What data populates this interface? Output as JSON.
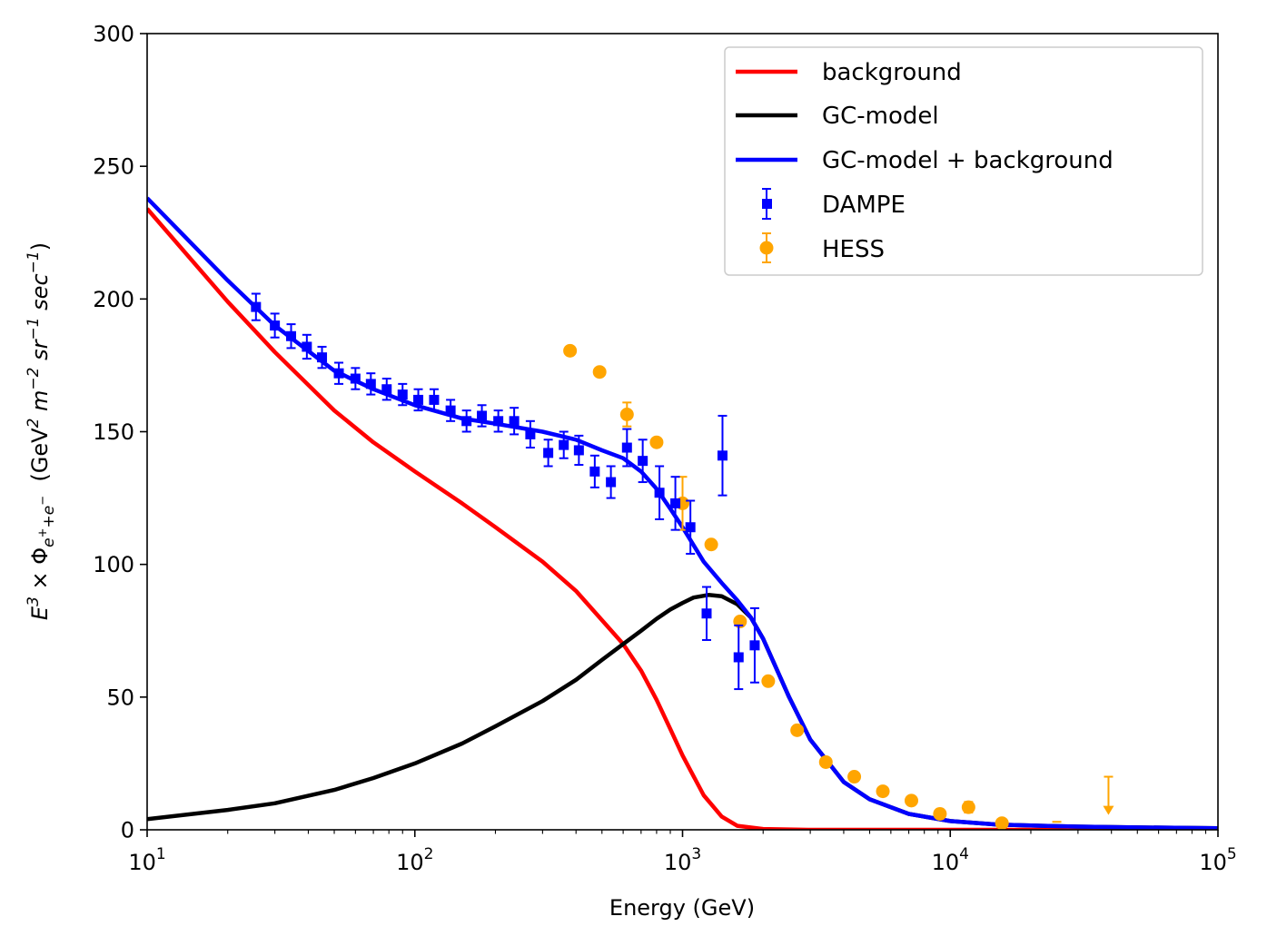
{
  "chart_data": {
    "type": "line",
    "xscale": "log",
    "xlim": [
      10,
      100000
    ],
    "ylim": [
      0,
      300
    ],
    "xlabel": "Energy (GeV)",
    "ylabel": {
      "prefix": "E",
      "prefix_sup": "3",
      "times": " × Φ",
      "sub": "e",
      "sub_sup1": "+",
      "sub_mid": "+e",
      "sub_sup2": "−",
      "unit_open": "  (GeV",
      "u1_sup": "2",
      "u2": " m",
      "u2_sup": "−2",
      "u3": " sr",
      "u3_sup": "−1",
      "u4": " sec",
      "u4_sup": "−1",
      "unit_close": ")"
    },
    "x_ticks": [
      {
        "base": "10",
        "exp": "1",
        "value": 10
      },
      {
        "base": "10",
        "exp": "2",
        "value": 100
      },
      {
        "base": "10",
        "exp": "3",
        "value": 1000
      },
      {
        "base": "10",
        "exp": "4",
        "value": 10000
      },
      {
        "base": "10",
        "exp": "5",
        "value": 100000
      }
    ],
    "y_ticks": [
      {
        "label": "0",
        "value": 0
      },
      {
        "label": "50",
        "value": 50
      },
      {
        "label": "100",
        "value": 100
      },
      {
        "label": "150",
        "value": 150
      },
      {
        "label": "200",
        "value": 200
      },
      {
        "label": "250",
        "value": 250
      },
      {
        "label": "300",
        "value": 300
      }
    ],
    "legend": {
      "position": "top-right",
      "entries": [
        {
          "label": "background",
          "color": "#ff0000",
          "kind": "line"
        },
        {
          "label": "GC-model",
          "color": "#000000",
          "kind": "line"
        },
        {
          "label": "GC-model + background",
          "color": "#0000ff",
          "kind": "line"
        },
        {
          "label": "DAMPE",
          "color": "#0000ff",
          "kind": "square"
        },
        {
          "label": "HESS",
          "color": "#ffa500",
          "kind": "circle"
        }
      ]
    },
    "series": [
      {
        "name": "background",
        "color": "#ff0000",
        "points": [
          [
            10,
            234
          ],
          [
            20,
            199
          ],
          [
            30,
            180
          ],
          [
            50,
            158
          ],
          [
            70,
            146
          ],
          [
            100,
            135
          ],
          [
            150,
            123
          ],
          [
            200,
            114
          ],
          [
            300,
            101
          ],
          [
            400,
            90
          ],
          [
            500,
            79
          ],
          [
            600,
            70
          ],
          [
            700,
            60
          ],
          [
            800,
            49
          ],
          [
            900,
            38
          ],
          [
            1000,
            28
          ],
          [
            1200,
            13
          ],
          [
            1400,
            5
          ],
          [
            1600,
            1.5
          ],
          [
            2000,
            0.3
          ],
          [
            3000,
            0
          ],
          [
            100000,
            0
          ]
        ]
      },
      {
        "name": "GC-model",
        "color": "#000000",
        "points": [
          [
            10,
            4
          ],
          [
            20,
            7.5
          ],
          [
            30,
            10
          ],
          [
            50,
            15
          ],
          [
            70,
            19.5
          ],
          [
            100,
            25
          ],
          [
            150,
            32.5
          ],
          [
            200,
            39
          ],
          [
            300,
            48.5
          ],
          [
            400,
            56.5
          ],
          [
            500,
            64
          ],
          [
            600,
            70
          ],
          [
            700,
            75
          ],
          [
            800,
            79.5
          ],
          [
            900,
            83
          ],
          [
            1000,
            85.5
          ],
          [
            1100,
            87.5
          ],
          [
            1250,
            88.5
          ],
          [
            1400,
            88
          ],
          [
            1600,
            85
          ],
          [
            1800,
            80
          ],
          [
            2000,
            72
          ],
          [
            2500,
            50
          ],
          [
            3000,
            34
          ],
          [
            4000,
            18
          ],
          [
            5000,
            11.5
          ],
          [
            7000,
            6
          ],
          [
            10000,
            3.3
          ],
          [
            15000,
            2
          ],
          [
            20000,
            1.6
          ],
          [
            30000,
            1.2
          ],
          [
            50000,
            0.9
          ],
          [
            100000,
            0.6
          ]
        ]
      },
      {
        "name": "GC-model + background",
        "color": "#0000ff",
        "points": [
          [
            10,
            238
          ],
          [
            20,
            207
          ],
          [
            30,
            190
          ],
          [
            50,
            173
          ],
          [
            70,
            166
          ],
          [
            100,
            160
          ],
          [
            150,
            155
          ],
          [
            200,
            153
          ],
          [
            300,
            150
          ],
          [
            400,
            147
          ],
          [
            500,
            143
          ],
          [
            600,
            140
          ],
          [
            700,
            135
          ],
          [
            800,
            128.5
          ],
          [
            900,
            121
          ],
          [
            1000,
            114
          ],
          [
            1200,
            101
          ],
          [
            1400,
            93
          ],
          [
            1600,
            86.5
          ],
          [
            1800,
            80
          ],
          [
            2000,
            72
          ],
          [
            2500,
            50
          ],
          [
            3000,
            34
          ],
          [
            4000,
            18
          ],
          [
            5000,
            11.5
          ],
          [
            7000,
            6
          ],
          [
            10000,
            3.3
          ],
          [
            15000,
            2
          ],
          [
            20000,
            1.6
          ],
          [
            30000,
            1.2
          ],
          [
            50000,
            0.9
          ],
          [
            100000,
            0.6
          ]
        ]
      }
    ],
    "dampe": {
      "color": "#0000ff",
      "points": [
        [
          25.5,
          197,
          5
        ],
        [
          30,
          190,
          4.5
        ],
        [
          34.5,
          186,
          4.5
        ],
        [
          39.5,
          182,
          4.5
        ],
        [
          45,
          178,
          4
        ],
        [
          52,
          172,
          4
        ],
        [
          60,
          170,
          4
        ],
        [
          68.5,
          168,
          4
        ],
        [
          78.5,
          166,
          4
        ],
        [
          90,
          164,
          4
        ],
        [
          103,
          162,
          4
        ],
        [
          118,
          162,
          4
        ],
        [
          136,
          158,
          4
        ],
        [
          156,
          154,
          4
        ],
        [
          178,
          156,
          4
        ],
        [
          205,
          154,
          4
        ],
        [
          235,
          154,
          5
        ],
        [
          270,
          149,
          5
        ],
        [
          315,
          142,
          5
        ],
        [
          360,
          145,
          5
        ],
        [
          410,
          143,
          5.5
        ],
        [
          470,
          135,
          6
        ],
        [
          540,
          131,
          6
        ],
        [
          620,
          144,
          7
        ],
        [
          710,
          139,
          8
        ],
        [
          820,
          127,
          10
        ],
        [
          940,
          123,
          10
        ],
        [
          1070,
          114,
          10
        ],
        [
          1230,
          81.5,
          10
        ],
        [
          1410,
          141,
          15
        ],
        [
          1620,
          65,
          12
        ],
        [
          1860,
          69.5,
          14
        ]
      ]
    },
    "hess": {
      "color": "#ffa500",
      "points": [
        [
          380,
          180.5,
          0
        ],
        [
          490,
          172.5,
          0
        ],
        [
          620,
          156.5,
          4.5
        ],
        [
          800,
          146,
          0
        ],
        [
          1000,
          123,
          10
        ],
        [
          1280,
          107.5,
          0
        ],
        [
          1640,
          78.5,
          0
        ],
        [
          2090,
          56,
          0
        ],
        [
          2680,
          37.5,
          0
        ],
        [
          3430,
          25.5,
          0
        ],
        [
          4380,
          20,
          0
        ],
        [
          5600,
          14.5,
          0
        ],
        [
          7160,
          11,
          0
        ],
        [
          9150,
          6,
          0
        ],
        [
          11700,
          8.5,
          2
        ],
        [
          15600,
          2.5,
          0
        ]
      ],
      "upper_limits": [
        [
          25000,
          3
        ],
        [
          39000,
          20
        ]
      ]
    }
  }
}
